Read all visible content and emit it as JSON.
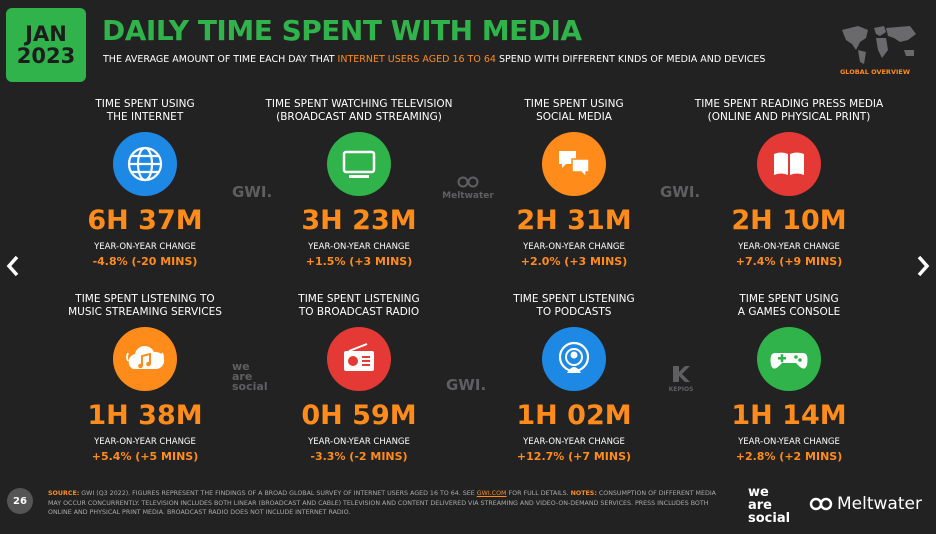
{
  "header": {
    "badge_month": "JAN",
    "badge_year": "2023",
    "title": "DAILY TIME SPENT WITH MEDIA",
    "subtitle_pre": "THE AVERAGE AMOUNT OF TIME EACH DAY THAT ",
    "subtitle_hl": "INTERNET USERS AGED 16 TO 64",
    "subtitle_post": " SPEND WITH DIFFERENT KINDS OF MEDIA AND DEVICES",
    "global": "GLOBAL OVERVIEW"
  },
  "colors": {
    "accent": "#ff8c1a",
    "brand_green": "#2fb34a",
    "background": "#222223"
  },
  "cards": [
    {
      "label": "TIME SPENT USING\nTHE INTERNET",
      "value": "6H 37M",
      "yoy_label": "YEAR-ON-YEAR CHANGE",
      "change": "-4.8% (-20 MINS)",
      "icon": "globe-icon",
      "icon_color": "#1e88e5"
    },
    {
      "label": "TIME SPENT WATCHING TELEVISION\n(BROADCAST AND STREAMING)",
      "value": "3H 23M",
      "yoy_label": "YEAR-ON-YEAR CHANGE",
      "change": "+1.5% (+3 MINS)",
      "icon": "tv-icon",
      "icon_color": "#2fb34a"
    },
    {
      "label": "TIME SPENT USING\nSOCIAL MEDIA",
      "value": "2H 31M",
      "yoy_label": "YEAR-ON-YEAR CHANGE",
      "change": "+2.0% (+3 MINS)",
      "icon": "chat-bubbles-icon",
      "icon_color": "#ff8c1a"
    },
    {
      "label": "TIME SPENT READING PRESS MEDIA\n(ONLINE AND PHYSICAL PRINT)",
      "value": "2H 10M",
      "yoy_label": "YEAR-ON-YEAR CHANGE",
      "change": "+7.4% (+9 MINS)",
      "icon": "book-icon",
      "icon_color": "#e53935"
    },
    {
      "label": "TIME SPENT LISTENING TO\nMUSIC STREAMING SERVICES",
      "value": "1H 38M",
      "yoy_label": "YEAR-ON-YEAR CHANGE",
      "change": "+5.4% (+5 MINS)",
      "icon": "cloud-music-icon",
      "icon_color": "#ff8c1a"
    },
    {
      "label": "TIME SPENT LISTENING\nTO BROADCAST RADIO",
      "value": "0H 59M",
      "yoy_label": "YEAR-ON-YEAR CHANGE",
      "change": "-3.3% (-2 MINS)",
      "icon": "radio-icon",
      "icon_color": "#e53935"
    },
    {
      "label": "TIME SPENT LISTENING\nTO PODCASTS",
      "value": "1H 02M",
      "yoy_label": "YEAR-ON-YEAR CHANGE",
      "change": "+12.7% (+7 MINS)",
      "icon": "podcast-icon",
      "icon_color": "#1e88e5"
    },
    {
      "label": "TIME SPENT USING\nA GAMES CONSOLE",
      "value": "1H 14M",
      "yoy_label": "YEAR-ON-YEAR CHANGE",
      "change": "+2.8% (+2 MINS)",
      "icon": "gamepad-icon",
      "icon_color": "#2fb34a"
    }
  ],
  "watermarks": {
    "gwi": "GWI.",
    "meltwater": "Meltwater",
    "we_are_social": "we\nare\nsocial",
    "kepios": "KEPIOS"
  },
  "footer": {
    "source_label": "SOURCE:",
    "source_text": " GWI (Q3 2022). FIGURES REPRESENT THE FINDINGS OF A BROAD GLOBAL SURVEY OF INTERNET USERS AGED 16 TO 64. SEE ",
    "link": "GWI.COM",
    "source_tail": " FOR FULL DETAILS. ",
    "notes_label": "NOTES:",
    "notes_text": " CONSUMPTION OF DIFFERENT MEDIA MAY OCCUR CONCURRENTLY. TELEVISION INCLUDES BOTH LINEAR (BROADCAST AND CABLE) TELEVISION AND CONTENT DELIVERED VIA STREAMING AND VIDEO-ON-DEMAND SERVICES. PRESS INCLUDES BOTH ONLINE AND PHYSICAL PRINT MEDIA. BROADCAST RADIO DOES NOT INCLUDE INTERNET RADIO.",
    "page_number": "26",
    "brand1": "we\nare\nsocial",
    "brand2": "Meltwater"
  }
}
